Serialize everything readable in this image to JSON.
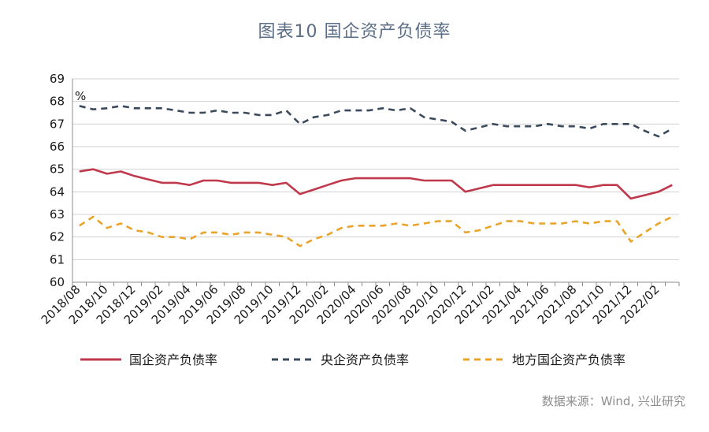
{
  "chart_data": {
    "type": "line",
    "title": "图表10  国企资产负债率",
    "unit": "%",
    "ylim": [
      60,
      69
    ],
    "yticks": [
      60,
      61,
      62,
      63,
      64,
      65,
      66,
      67,
      68,
      69
    ],
    "grid": true,
    "legend_position": "bottom",
    "source": "数据来源：Wind, 兴业研究",
    "x_tick_labels": [
      "2018/08",
      "2018/10",
      "2018/12",
      "2019/02",
      "2019/04",
      "2019/06",
      "2019/08",
      "2019/10",
      "2019/12",
      "2020/02",
      "2020/04",
      "2020/06",
      "2020/08",
      "2020/10",
      "2020/12",
      "2021/02",
      "2021/04",
      "2021/06",
      "2021/08",
      "2021/10",
      "2021/12",
      "2022/02"
    ],
    "x": [
      "2018/08",
      "2018/09",
      "2018/10",
      "2018/11",
      "2018/12",
      "2019/01",
      "2019/02",
      "2019/03",
      "2019/04",
      "2019/05",
      "2019/06",
      "2019/07",
      "2019/08",
      "2019/09",
      "2019/10",
      "2019/11",
      "2019/12",
      "2020/01",
      "2020/02",
      "2020/03",
      "2020/04",
      "2020/05",
      "2020/06",
      "2020/07",
      "2020/08",
      "2020/09",
      "2020/10",
      "2020/11",
      "2020/12",
      "2021/01",
      "2021/02",
      "2021/03",
      "2021/04",
      "2021/05",
      "2021/06",
      "2021/07",
      "2021/08",
      "2021/09",
      "2021/10",
      "2021/11",
      "2021/12",
      "2022/01",
      "2022/02",
      "2022/03"
    ],
    "series": [
      {
        "name": "国企资产负债率",
        "color": "#c0384b",
        "dash": "solid",
        "values": [
          64.9,
          65.0,
          64.8,
          64.9,
          64.7,
          64.55,
          64.4,
          64.4,
          64.3,
          64.5,
          64.5,
          64.4,
          64.4,
          64.4,
          64.3,
          64.4,
          63.9,
          64.1,
          64.3,
          64.5,
          64.6,
          64.6,
          64.6,
          64.6,
          64.6,
          64.5,
          64.5,
          64.5,
          64.0,
          64.15,
          64.3,
          64.3,
          64.3,
          64.3,
          64.3,
          64.3,
          64.3,
          64.2,
          64.3,
          64.3,
          63.7,
          63.85,
          64.0,
          64.3
        ]
      },
      {
        "name": "央企资产负债率",
        "color": "#3a4a5c",
        "dash": "dashed",
        "values": [
          67.8,
          67.65,
          67.7,
          67.8,
          67.7,
          67.7,
          67.7,
          67.6,
          67.5,
          67.5,
          67.6,
          67.5,
          67.5,
          67.4,
          67.4,
          67.6,
          67.0,
          67.3,
          67.4,
          67.6,
          67.6,
          67.6,
          67.7,
          67.6,
          67.7,
          67.3,
          67.2,
          67.1,
          66.7,
          66.85,
          67.0,
          66.9,
          66.9,
          66.9,
          67.0,
          66.9,
          66.9,
          66.8,
          67.0,
          67.0,
          67.0,
          66.7,
          66.45,
          66.8
        ]
      },
      {
        "name": "地方国企资产负债率",
        "color": "#e8a42b",
        "dash": "dashed",
        "values": [
          62.5,
          62.9,
          62.4,
          62.6,
          62.3,
          62.2,
          62.0,
          62.0,
          61.9,
          62.2,
          62.2,
          62.1,
          62.2,
          62.2,
          62.1,
          62.0,
          61.6,
          61.9,
          62.1,
          62.4,
          62.5,
          62.5,
          62.5,
          62.6,
          62.5,
          62.6,
          62.7,
          62.7,
          62.2,
          62.3,
          62.5,
          62.7,
          62.7,
          62.6,
          62.6,
          62.6,
          62.7,
          62.6,
          62.7,
          62.7,
          61.8,
          62.2,
          62.6,
          62.9
        ]
      }
    ]
  }
}
